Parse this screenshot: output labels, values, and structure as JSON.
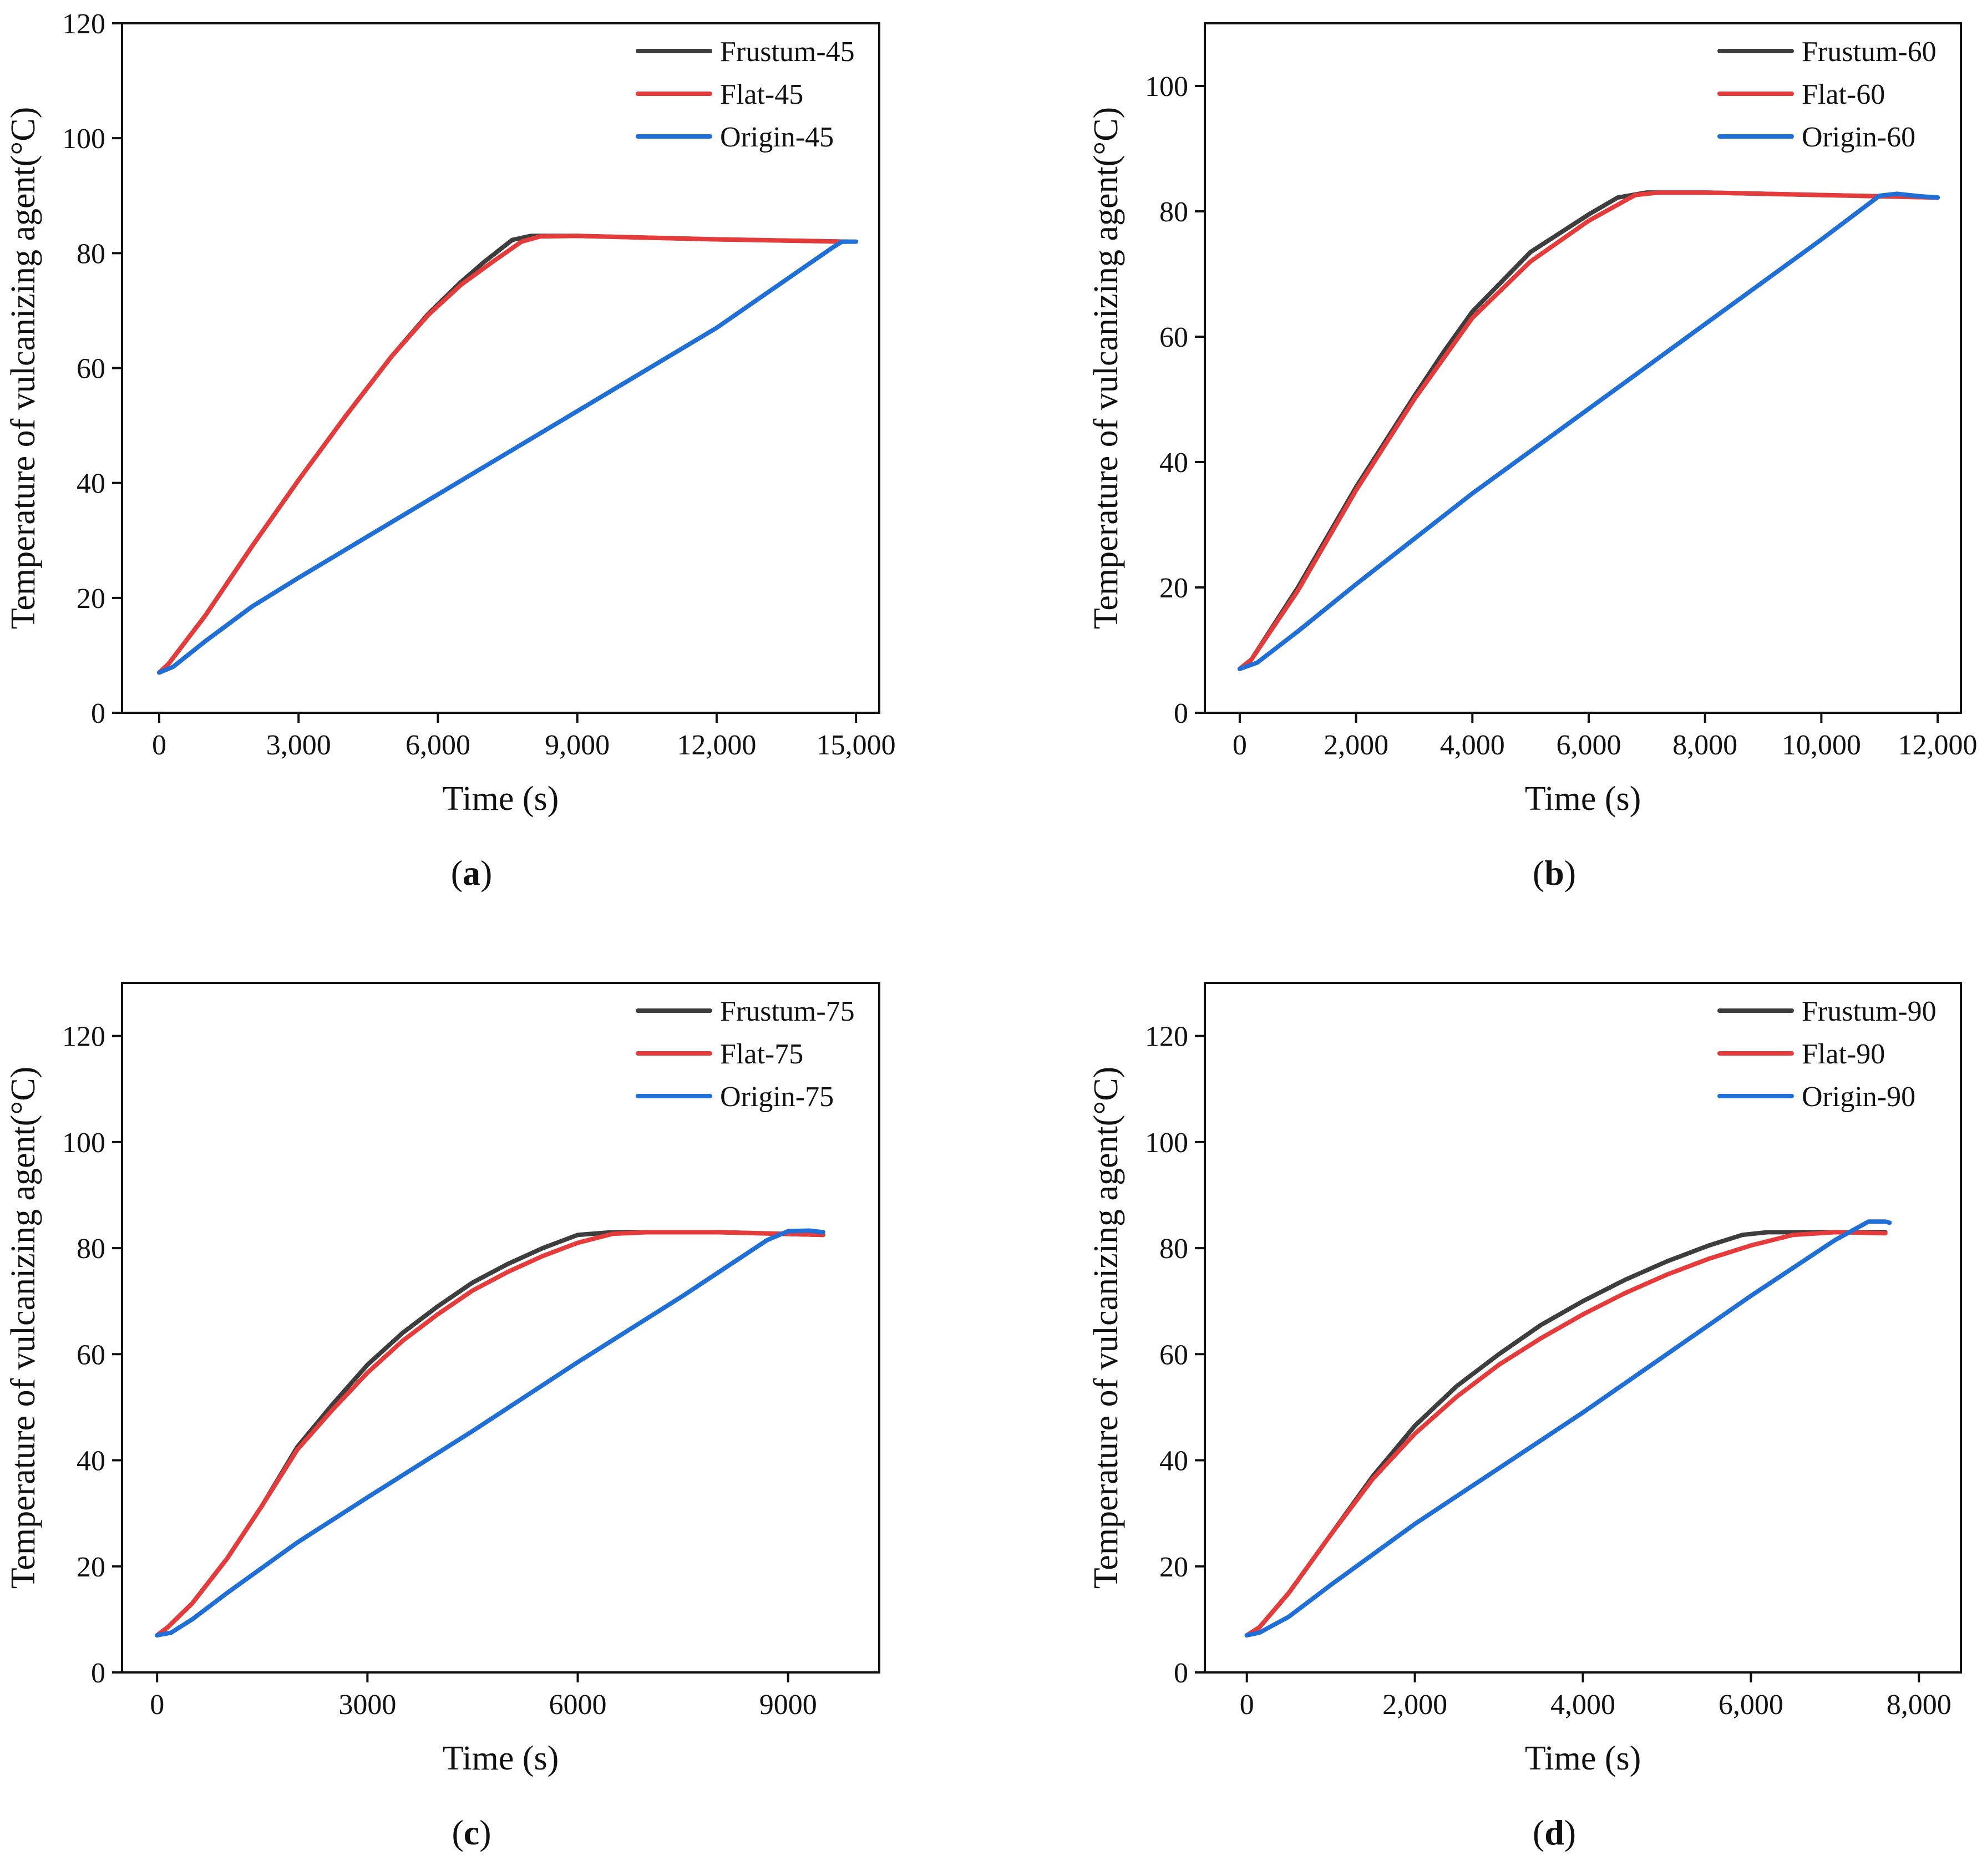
{
  "colors": {
    "Frustum": "#3d3d3d",
    "Flat": "#e53b3b",
    "Origin": "#1f6fd6"
  },
  "chart_data": [
    {
      "type": "line",
      "panel_label": "(a)",
      "xlabel": "Time (s)",
      "ylabel": "Temperature of vulcanizing agent(°C)",
      "xlim": [
        -800,
        15500
      ],
      "ylim": [
        0,
        120
      ],
      "xticks": [
        0,
        3000,
        6000,
        9000,
        12000,
        15000
      ],
      "xtick_labels": [
        "0",
        "3,000",
        "6,000",
        "9,000",
        "12,000",
        "15,000"
      ],
      "yticks": [
        0,
        20,
        40,
        60,
        80,
        100,
        120
      ],
      "ytick_labels": [
        "0",
        "20",
        "40",
        "60",
        "80",
        "100",
        "120"
      ],
      "series": [
        {
          "name": "Frustum-45",
          "key": "Frustum",
          "points": [
            [
              0,
              7
            ],
            [
              200,
              8.5
            ],
            [
              1000,
              17
            ],
            [
              2000,
              29
            ],
            [
              3000,
              40.5
            ],
            [
              4000,
              51.5
            ],
            [
              5000,
              62
            ],
            [
              5800,
              69.5
            ],
            [
              6500,
              75
            ],
            [
              7000,
              78.5
            ],
            [
              7600,
              82.3
            ],
            [
              8000,
              83
            ],
            [
              9000,
              83
            ],
            [
              12000,
              82.4
            ],
            [
              14800,
              82
            ]
          ]
        },
        {
          "name": "Flat-45",
          "key": "Flat",
          "points": [
            [
              0,
              7
            ],
            [
              200,
              8.5
            ],
            [
              1000,
              17
            ],
            [
              2000,
              29
            ],
            [
              3000,
              40.5
            ],
            [
              4000,
              51.5
            ],
            [
              5000,
              62
            ],
            [
              5800,
              69.3
            ],
            [
              6500,
              74.5
            ],
            [
              7200,
              78.6
            ],
            [
              7800,
              82
            ],
            [
              8200,
              82.9
            ],
            [
              9000,
              83
            ],
            [
              12000,
              82.4
            ],
            [
              14800,
              82
            ]
          ]
        },
        {
          "name": "Origin-45",
          "key": "Origin",
          "points": [
            [
              0,
              7
            ],
            [
              300,
              8
            ],
            [
              1000,
              12.5
            ],
            [
              2000,
              18.5
            ],
            [
              3000,
              23.5
            ],
            [
              6000,
              38
            ],
            [
              9000,
              52.5
            ],
            [
              12000,
              67
            ],
            [
              14500,
              81
            ],
            [
              14700,
              82
            ],
            [
              15000,
              82
            ]
          ]
        }
      ]
    },
    {
      "type": "line",
      "panel_label": "(b)",
      "xlabel": "Time (s)",
      "ylabel": "Temperature of vulcanizing agent(°C)",
      "xlim": [
        -600,
        12400
      ],
      "ylim": [
        0,
        110
      ],
      "xticks": [
        0,
        2000,
        4000,
        6000,
        8000,
        10000,
        12000
      ],
      "xtick_labels": [
        "0",
        "2,000",
        "4,000",
        "6,000",
        "8,000",
        "10,000",
        "12,000"
      ],
      "yticks": [
        0,
        20,
        40,
        60,
        80,
        100
      ],
      "ytick_labels": [
        "0",
        "20",
        "40",
        "60",
        "80",
        "100"
      ],
      "series": [
        {
          "name": "Frustum-60",
          "key": "Frustum",
          "points": [
            [
              0,
              7
            ],
            [
              200,
              8.5
            ],
            [
              1000,
              20
            ],
            [
              2000,
              36
            ],
            [
              3000,
              50.5
            ],
            [
              3500,
              57.5
            ],
            [
              4000,
              64
            ],
            [
              5000,
              73.5
            ],
            [
              6000,
              79.5
            ],
            [
              6500,
              82.2
            ],
            [
              7000,
              83
            ],
            [
              8000,
              83
            ],
            [
              10000,
              82.6
            ],
            [
              12000,
              82.2
            ]
          ]
        },
        {
          "name": "Flat-60",
          "key": "Flat",
          "points": [
            [
              0,
              7
            ],
            [
              200,
              8.5
            ],
            [
              1000,
              19.5
            ],
            [
              2000,
              35.5
            ],
            [
              3000,
              50
            ],
            [
              3500,
              56.5
            ],
            [
              4000,
              63
            ],
            [
              5000,
              72
            ],
            [
              6000,
              78.5
            ],
            [
              6800,
              82.6
            ],
            [
              7200,
              83
            ],
            [
              8000,
              83
            ],
            [
              10000,
              82.6
            ],
            [
              12000,
              82.2
            ]
          ]
        },
        {
          "name": "Origin-60",
          "key": "Origin",
          "points": [
            [
              0,
              7
            ],
            [
              300,
              8
            ],
            [
              1000,
              13
            ],
            [
              2000,
              20.5
            ],
            [
              4000,
              35
            ],
            [
              6000,
              48.5
            ],
            [
              8000,
              62
            ],
            [
              10000,
              75.5
            ],
            [
              11000,
              82.5
            ],
            [
              11300,
              82.8
            ],
            [
              11700,
              82.4
            ],
            [
              12000,
              82.2
            ]
          ]
        }
      ]
    },
    {
      "type": "line",
      "panel_label": "(c)",
      "xlabel": "Time (s)",
      "ylabel": "Temperature of vulcanizing agent(°C)",
      "xlim": [
        -500,
        10300
      ],
      "ylim": [
        0,
        130
      ],
      "xticks": [
        0,
        3000,
        6000,
        9000
      ],
      "xtick_labels": [
        "0",
        "3000",
        "6000",
        "9000"
      ],
      "yticks": [
        0,
        20,
        40,
        60,
        80,
        100,
        120
      ],
      "ytick_labels": [
        "0",
        "20",
        "40",
        "60",
        "80",
        "100",
        "120"
      ],
      "series": [
        {
          "name": "Frustum-75",
          "key": "Frustum",
          "points": [
            [
              0,
              7
            ],
            [
              150,
              8.5
            ],
            [
              500,
              13
            ],
            [
              1000,
              21.5
            ],
            [
              1500,
              31.5
            ],
            [
              2000,
              42.5
            ],
            [
              2500,
              50.5
            ],
            [
              3000,
              58
            ],
            [
              3500,
              64
            ],
            [
              4000,
              69
            ],
            [
              4500,
              73.5
            ],
            [
              5000,
              77
            ],
            [
              5500,
              80
            ],
            [
              6000,
              82.5
            ],
            [
              6500,
              83
            ],
            [
              8000,
              83
            ],
            [
              9500,
              82.5
            ]
          ]
        },
        {
          "name": "Flat-75",
          "key": "Flat",
          "points": [
            [
              0,
              7
            ],
            [
              150,
              8.5
            ],
            [
              500,
              13
            ],
            [
              1000,
              21.5
            ],
            [
              1500,
              31.5
            ],
            [
              2000,
              42
            ],
            [
              2500,
              49.5
            ],
            [
              3000,
              56.5
            ],
            [
              3500,
              62.5
            ],
            [
              4000,
              67.5
            ],
            [
              4500,
              72
            ],
            [
              5000,
              75.5
            ],
            [
              5500,
              78.5
            ],
            [
              6000,
              81
            ],
            [
              6500,
              82.7
            ],
            [
              7000,
              83
            ],
            [
              8000,
              83
            ],
            [
              9500,
              82.5
            ]
          ]
        },
        {
          "name": "Origin-75",
          "key": "Origin",
          "points": [
            [
              0,
              7
            ],
            [
              200,
              7.5
            ],
            [
              500,
              10
            ],
            [
              1000,
              15
            ],
            [
              2000,
              24.5
            ],
            [
              3000,
              33
            ],
            [
              4500,
              45.5
            ],
            [
              6000,
              58.5
            ],
            [
              7500,
              71
            ],
            [
              8700,
              81.5
            ],
            [
              9000,
              83.2
            ],
            [
              9300,
              83.3
            ],
            [
              9500,
              83
            ]
          ]
        }
      ]
    },
    {
      "type": "line",
      "panel_label": "(d)",
      "xlabel": "Time (s)",
      "ylabel": "Temperature of vulcanizing agent(°C)",
      "xlim": [
        -500,
        8500
      ],
      "ylim": [
        0,
        130
      ],
      "xticks": [
        0,
        2000,
        4000,
        6000,
        8000
      ],
      "xtick_labels": [
        "0",
        "2,000",
        "4,000",
        "6,000",
        "8,000"
      ],
      "yticks": [
        0,
        20,
        40,
        60,
        80,
        100,
        120
      ],
      "ytick_labels": [
        "0",
        "20",
        "40",
        "60",
        "80",
        "100",
        "120"
      ],
      "series": [
        {
          "name": "Frustum-90",
          "key": "Frustum",
          "points": [
            [
              0,
              7
            ],
            [
              150,
              8.5
            ],
            [
              500,
              15
            ],
            [
              1000,
              26
            ],
            [
              1500,
              37
            ],
            [
              2000,
              46.5
            ],
            [
              2500,
              54
            ],
            [
              3000,
              60
            ],
            [
              3500,
              65.5
            ],
            [
              4000,
              70
            ],
            [
              4500,
              74
            ],
            [
              5000,
              77.5
            ],
            [
              5500,
              80.5
            ],
            [
              5900,
              82.5
            ],
            [
              6200,
              83
            ],
            [
              7000,
              83
            ],
            [
              7600,
              83
            ]
          ]
        },
        {
          "name": "Flat-90",
          "key": "Flat",
          "points": [
            [
              0,
              7
            ],
            [
              150,
              8.5
            ],
            [
              500,
              15
            ],
            [
              1000,
              26
            ],
            [
              1500,
              36.5
            ],
            [
              2000,
              45
            ],
            [
              2500,
              52
            ],
            [
              3000,
              58
            ],
            [
              3500,
              63
            ],
            [
              4000,
              67.5
            ],
            [
              4500,
              71.5
            ],
            [
              5000,
              75
            ],
            [
              5500,
              78
            ],
            [
              6000,
              80.5
            ],
            [
              6500,
              82.5
            ],
            [
              7000,
              83
            ],
            [
              7600,
              82.8
            ]
          ]
        },
        {
          "name": "Origin-90",
          "key": "Origin",
          "points": [
            [
              0,
              7
            ],
            [
              150,
              7.5
            ],
            [
              500,
              10.5
            ],
            [
              1000,
              16.5
            ],
            [
              2000,
              28
            ],
            [
              3000,
              38.5
            ],
            [
              4000,
              49
            ],
            [
              5000,
              60
            ],
            [
              6000,
              71
            ],
            [
              7000,
              81.5
            ],
            [
              7400,
              85
            ],
            [
              7600,
              85
            ],
            [
              7650,
              84.8
            ]
          ]
        }
      ]
    }
  ]
}
